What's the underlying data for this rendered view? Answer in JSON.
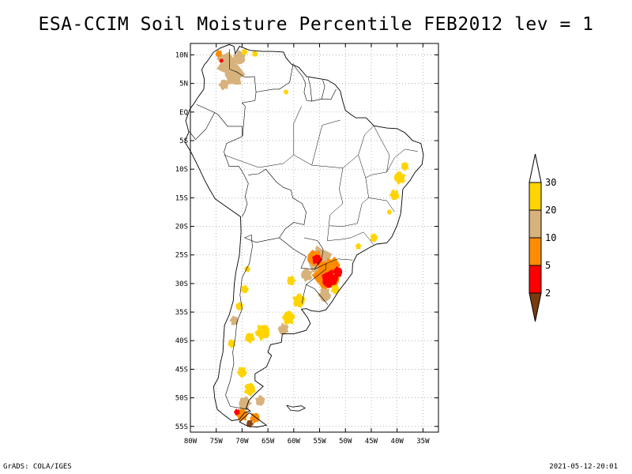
{
  "title": "ESA-CCIM Soil Moisture Percentile FEB2012 lev = 1",
  "footer": {
    "left": "GrADS: COLA/IGES",
    "right": "2021-05-12-20:01"
  },
  "map": {
    "lon_range": [
      -80,
      -32
    ],
    "lat_range": [
      -56,
      12
    ],
    "lat_ticks": [
      {
        "value": 10,
        "label": "10N"
      },
      {
        "value": 5,
        "label": "5N"
      },
      {
        "value": 0,
        "label": "EQ"
      },
      {
        "value": -5,
        "label": "5S"
      },
      {
        "value": -10,
        "label": "10S"
      },
      {
        "value": -15,
        "label": "15S"
      },
      {
        "value": -20,
        "label": "20S"
      },
      {
        "value": -25,
        "label": "25S"
      },
      {
        "value": -30,
        "label": "30S"
      },
      {
        "value": -35,
        "label": "35S"
      },
      {
        "value": -40,
        "label": "40S"
      },
      {
        "value": -45,
        "label": "45S"
      },
      {
        "value": -50,
        "label": "50S"
      },
      {
        "value": -55,
        "label": "55S"
      }
    ],
    "lon_ticks": [
      {
        "value": -80,
        "label": "80W"
      },
      {
        "value": -75,
        "label": "75W"
      },
      {
        "value": -70,
        "label": "70W"
      },
      {
        "value": -65,
        "label": "65W"
      },
      {
        "value": -60,
        "label": "60W"
      },
      {
        "value": -55,
        "label": "55W"
      },
      {
        "value": -50,
        "label": "50W"
      },
      {
        "value": -45,
        "label": "45W"
      },
      {
        "value": -40,
        "label": "40W"
      },
      {
        "value": -35,
        "label": "35W"
      }
    ],
    "grid": true
  },
  "colorbar": {
    "levels": [
      {
        "label": "30",
        "color": "#ffd400"
      },
      {
        "label": "20",
        "color": "#d8b27c"
      },
      {
        "label": "10",
        "color": "#ff8c00"
      },
      {
        "label": "5",
        "color": "#ff0000"
      },
      {
        "label": "2",
        "color": "#8b4513"
      }
    ],
    "top_color": "#ffffff",
    "bottom_color": "#7a3b10"
  },
  "patches": [
    {
      "lon": -73,
      "lat": 8.5,
      "r": 2.0,
      "color": "#d8b27c"
    },
    {
      "lon": -71.5,
      "lat": 6.5,
      "r": 2.0,
      "color": "#d8b27c"
    },
    {
      "lon": -70.5,
      "lat": 9.5,
      "r": 1.3,
      "color": "#d8b27c"
    },
    {
      "lon": -73.5,
      "lat": 4.8,
      "r": 1.0,
      "color": "#d8b27c"
    },
    {
      "lon": -74.5,
      "lat": 10.2,
      "r": 0.7,
      "color": "#ff8c00"
    },
    {
      "lon": -74.0,
      "lat": 9.0,
      "r": 0.4,
      "color": "#ff0000"
    },
    {
      "lon": -69.5,
      "lat": 10.5,
      "r": 0.6,
      "color": "#ffd400"
    },
    {
      "lon": -67.5,
      "lat": 10.2,
      "r": 0.6,
      "color": "#ffd400"
    },
    {
      "lon": -61.5,
      "lat": 3.5,
      "r": 0.5,
      "color": "#ffd400"
    },
    {
      "lon": -39.5,
      "lat": -11.5,
      "r": 1.2,
      "color": "#ffd400"
    },
    {
      "lon": -40.5,
      "lat": -14.5,
      "r": 1.0,
      "color": "#ffd400"
    },
    {
      "lon": -38.5,
      "lat": -9.5,
      "r": 0.8,
      "color": "#ffd400"
    },
    {
      "lon": -41.5,
      "lat": -17.5,
      "r": 0.5,
      "color": "#ffd400"
    },
    {
      "lon": -44.5,
      "lat": -22.0,
      "r": 0.8,
      "color": "#ffd400"
    },
    {
      "lon": -47.5,
      "lat": -23.5,
      "r": 0.6,
      "color": "#ffd400"
    },
    {
      "lon": -55.0,
      "lat": -26.0,
      "r": 2.5,
      "color": "#d8b27c"
    },
    {
      "lon": -53.5,
      "lat": -28.5,
      "r": 2.8,
      "color": "#ff8c00"
    },
    {
      "lon": -56.0,
      "lat": -25.5,
      "r": 1.5,
      "color": "#ff8c00"
    },
    {
      "lon": -52.5,
      "lat": -26.8,
      "r": 1.5,
      "color": "#ff8c00"
    },
    {
      "lon": -55.5,
      "lat": -25.8,
      "r": 1.0,
      "color": "#ff0000"
    },
    {
      "lon": -53.0,
      "lat": -29.3,
      "r": 1.7,
      "color": "#ff0000"
    },
    {
      "lon": -51.5,
      "lat": -28.0,
      "r": 1.0,
      "color": "#ff0000"
    },
    {
      "lon": -57.5,
      "lat": -28.5,
      "r": 1.2,
      "color": "#d8b27c"
    },
    {
      "lon": -54.0,
      "lat": -32.0,
      "r": 1.3,
      "color": "#d8b27c"
    },
    {
      "lon": -52.0,
      "lat": -31.0,
      "r": 0.9,
      "color": "#ffd400"
    },
    {
      "lon": -60.5,
      "lat": -29.5,
      "r": 0.9,
      "color": "#ffd400"
    },
    {
      "lon": -59.0,
      "lat": -33.0,
      "r": 1.3,
      "color": "#ffd400"
    },
    {
      "lon": -61.0,
      "lat": -36.0,
      "r": 1.3,
      "color": "#ffd400"
    },
    {
      "lon": -62.0,
      "lat": -38.0,
      "r": 1.1,
      "color": "#d8b27c"
    },
    {
      "lon": -66.0,
      "lat": -38.5,
      "r": 1.5,
      "color": "#ffd400"
    },
    {
      "lon": -68.5,
      "lat": -39.5,
      "r": 1.0,
      "color": "#ffd400"
    },
    {
      "lon": -69.5,
      "lat": -31.0,
      "r": 0.8,
      "color": "#ffd400"
    },
    {
      "lon": -69.0,
      "lat": -27.5,
      "r": 0.6,
      "color": "#ffd400"
    },
    {
      "lon": -70.5,
      "lat": -34.0,
      "r": 0.8,
      "color": "#ffd400"
    },
    {
      "lon": -71.5,
      "lat": -36.5,
      "r": 0.9,
      "color": "#d8b27c"
    },
    {
      "lon": -72.0,
      "lat": -40.5,
      "r": 0.8,
      "color": "#ffd400"
    },
    {
      "lon": -70.0,
      "lat": -45.5,
      "r": 1.0,
      "color": "#ffd400"
    },
    {
      "lon": -68.5,
      "lat": -48.5,
      "r": 1.2,
      "color": "#ffd400"
    },
    {
      "lon": -69.5,
      "lat": -51.0,
      "r": 1.3,
      "color": "#d8b27c"
    },
    {
      "lon": -66.5,
      "lat": -50.5,
      "r": 1.0,
      "color": "#d8b27c"
    },
    {
      "lon": -70.0,
      "lat": -53.0,
      "r": 1.2,
      "color": "#ff8c00"
    },
    {
      "lon": -71.0,
      "lat": -52.5,
      "r": 0.6,
      "color": "#ff0000"
    },
    {
      "lon": -67.5,
      "lat": -53.5,
      "r": 1.0,
      "color": "#ff8c00"
    },
    {
      "lon": -68.5,
      "lat": -54.5,
      "r": 0.7,
      "color": "#8b4513"
    }
  ]
}
